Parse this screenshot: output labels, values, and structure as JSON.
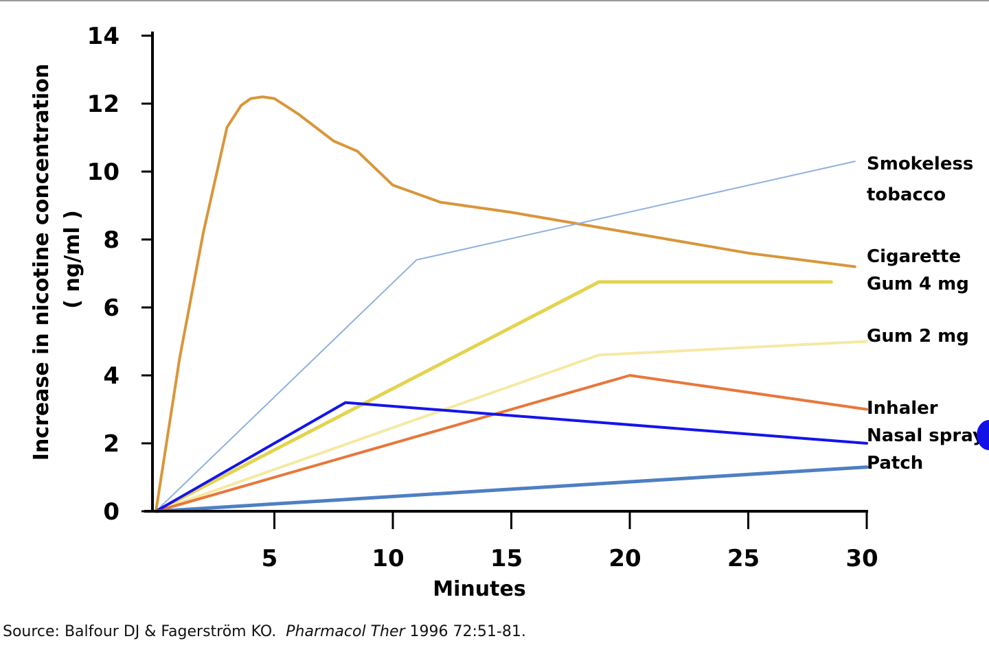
{
  "chart_data": {
    "type": "line",
    "xlabel": "Minutes",
    "ylabel_lines": [
      "Increase in nicotine concentration",
      "( ng/ml )"
    ],
    "x_ticks": [
      5,
      10,
      15,
      20,
      25,
      30
    ],
    "y_ticks": [
      0,
      2,
      4,
      6,
      8,
      10,
      12,
      14
    ],
    "xlim": [
      0,
      30
    ],
    "ylim": [
      0,
      14
    ],
    "grid": false,
    "series": [
      {
        "key": "cigarette",
        "label_lines": [
          "Cigarette"
        ],
        "color": "#D8963A",
        "width": 4,
        "x": [
          0,
          1,
          2,
          3,
          3.6,
          4,
          4.5,
          5,
          6,
          7.5,
          8.5,
          10,
          12,
          15,
          20,
          25,
          29.5
        ],
        "y": [
          0,
          4.5,
          8.2,
          11.3,
          11.95,
          12.15,
          12.2,
          12.15,
          11.7,
          10.9,
          10.6,
          9.6,
          9.1,
          8.8,
          8.2,
          7.6,
          7.2
        ]
      },
      {
        "key": "smokeless-tobacco",
        "label_lines": [
          "Smokeless",
          "tobacco"
        ],
        "color": "#8FB1DD",
        "width": 2,
        "dashed": true,
        "x": [
          0,
          11,
          29.5
        ],
        "y": [
          0,
          7.4,
          10.3
        ]
      },
      {
        "key": "gum-4mg",
        "label_lines": [
          "Gum 4 mg"
        ],
        "color": "#E3D34F",
        "width": 5,
        "x": [
          0,
          18.7,
          28.5
        ],
        "y": [
          0,
          6.75,
          6.75
        ]
      },
      {
        "key": "gum-2mg",
        "label_lines": [
          "Gum 2 mg"
        ],
        "color": "#F5E9A2",
        "width": 4,
        "x": [
          0,
          18.7,
          30
        ],
        "y": [
          0,
          4.6,
          5.0
        ]
      },
      {
        "key": "inhaler",
        "label_lines": [
          "Inhaler"
        ],
        "color": "#E8773A",
        "width": 4,
        "x": [
          0,
          20,
          30
        ],
        "y": [
          0,
          4.0,
          3.0
        ]
      },
      {
        "key": "nasal-spray",
        "label_lines": [
          "Nasal spray"
        ],
        "color": "#1414EC",
        "width": 4,
        "x": [
          0,
          8,
          30
        ],
        "y": [
          0,
          3.2,
          2.0
        ]
      },
      {
        "key": "patch",
        "label_lines": [
          "Patch"
        ],
        "color": "#4E7FC3",
        "width": 5,
        "x": [
          0,
          30
        ],
        "y": [
          0,
          1.3
        ]
      }
    ]
  },
  "source": {
    "prefix": "Source: Balfour DJ & Fagerström KO.",
    "journal": "Pharmacol Ther",
    "suffix": "1996 72:51-81."
  }
}
